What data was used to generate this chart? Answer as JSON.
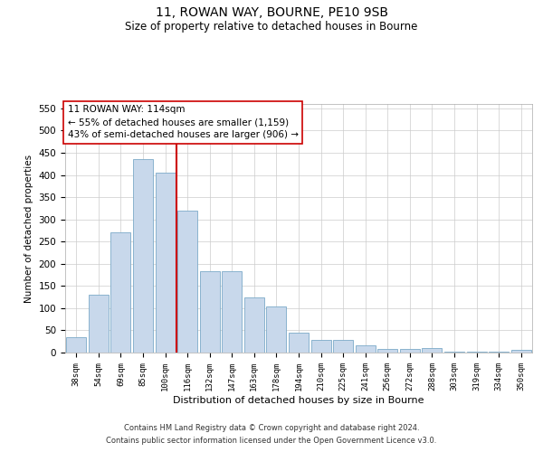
{
  "title": "11, ROWAN WAY, BOURNE, PE10 9SB",
  "subtitle": "Size of property relative to detached houses in Bourne",
  "xlabel": "Distribution of detached houses by size in Bourne",
  "ylabel": "Number of detached properties",
  "categories": [
    "38sqm",
    "54sqm",
    "69sqm",
    "85sqm",
    "100sqm",
    "116sqm",
    "132sqm",
    "147sqm",
    "163sqm",
    "178sqm",
    "194sqm",
    "210sqm",
    "225sqm",
    "241sqm",
    "256sqm",
    "272sqm",
    "288sqm",
    "303sqm",
    "319sqm",
    "334sqm",
    "350sqm"
  ],
  "values": [
    35,
    130,
    270,
    435,
    405,
    320,
    183,
    183,
    125,
    103,
    45,
    28,
    28,
    17,
    8,
    8,
    10,
    3,
    3,
    3,
    6
  ],
  "bar_color": "#c8d8eb",
  "bar_edge_color": "#7baac8",
  "vline_color": "#cc0000",
  "vline_x_index": 5,
  "box_edge_color": "#cc0000",
  "annotation_line1": "11 ROWAN WAY: 114sqm",
  "annotation_line2": "← 55% of detached houses are smaller (1,159)",
  "annotation_line3": "43% of semi-detached houses are larger (906) →",
  "ylim": [
    0,
    560
  ],
  "yticks": [
    0,
    50,
    100,
    150,
    200,
    250,
    300,
    350,
    400,
    450,
    500,
    550
  ],
  "footnote1": "Contains HM Land Registry data © Crown copyright and database right 2024.",
  "footnote2": "Contains public sector information licensed under the Open Government Licence v3.0.",
  "bg_color": "#ffffff",
  "grid_color": "#cccccc",
  "title_fontsize": 10,
  "subtitle_fontsize": 8.5
}
